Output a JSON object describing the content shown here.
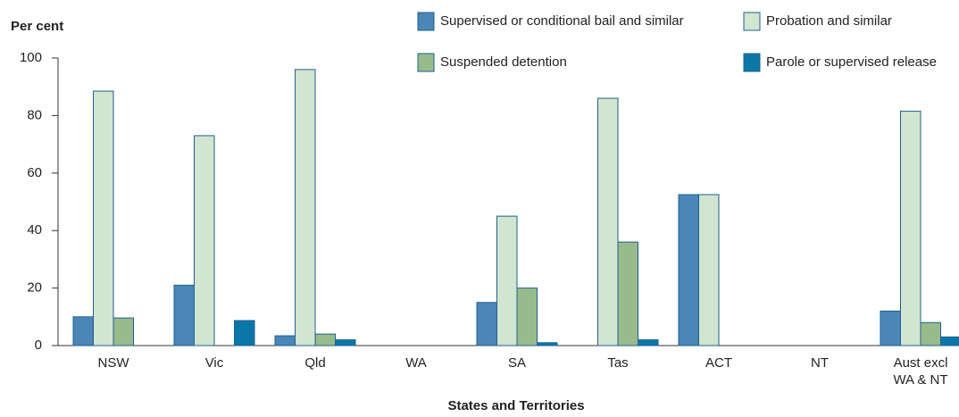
{
  "chart_data": {
    "type": "bar",
    "y_label": "Per cent",
    "x_label": "States and Territories",
    "categories": [
      "NSW",
      "Vic",
      "Qld",
      "WA",
      "SA",
      "Tas",
      "ACT",
      "NT",
      "Aust excl\nWA & NT"
    ],
    "series": [
      {
        "name": "Supervised or conditional bail and similar",
        "color": "#4a86b8",
        "values": [
          10,
          21,
          3.4,
          null,
          15,
          0,
          52.5,
          null,
          12
        ]
      },
      {
        "name": "Probation and similar",
        "color": "#d2e5d0",
        "values": [
          88.5,
          73,
          96,
          null,
          45,
          86,
          52.5,
          null,
          81.5
        ]
      },
      {
        "name": "Suspended detention",
        "color": "#98bb8c",
        "values": [
          9.6,
          0,
          4,
          null,
          20,
          36,
          0,
          null,
          8
        ]
      },
      {
        "name": "Parole or supervised release",
        "color": "#0b77a8",
        "values": [
          0,
          8.7,
          2,
          null,
          1,
          2,
          0,
          null,
          3
        ]
      }
    ],
    "ylim": [
      0,
      100
    ],
    "yticks": [
      0,
      20,
      40,
      60,
      80,
      100
    ],
    "legend": "top-right",
    "grid": false
  }
}
